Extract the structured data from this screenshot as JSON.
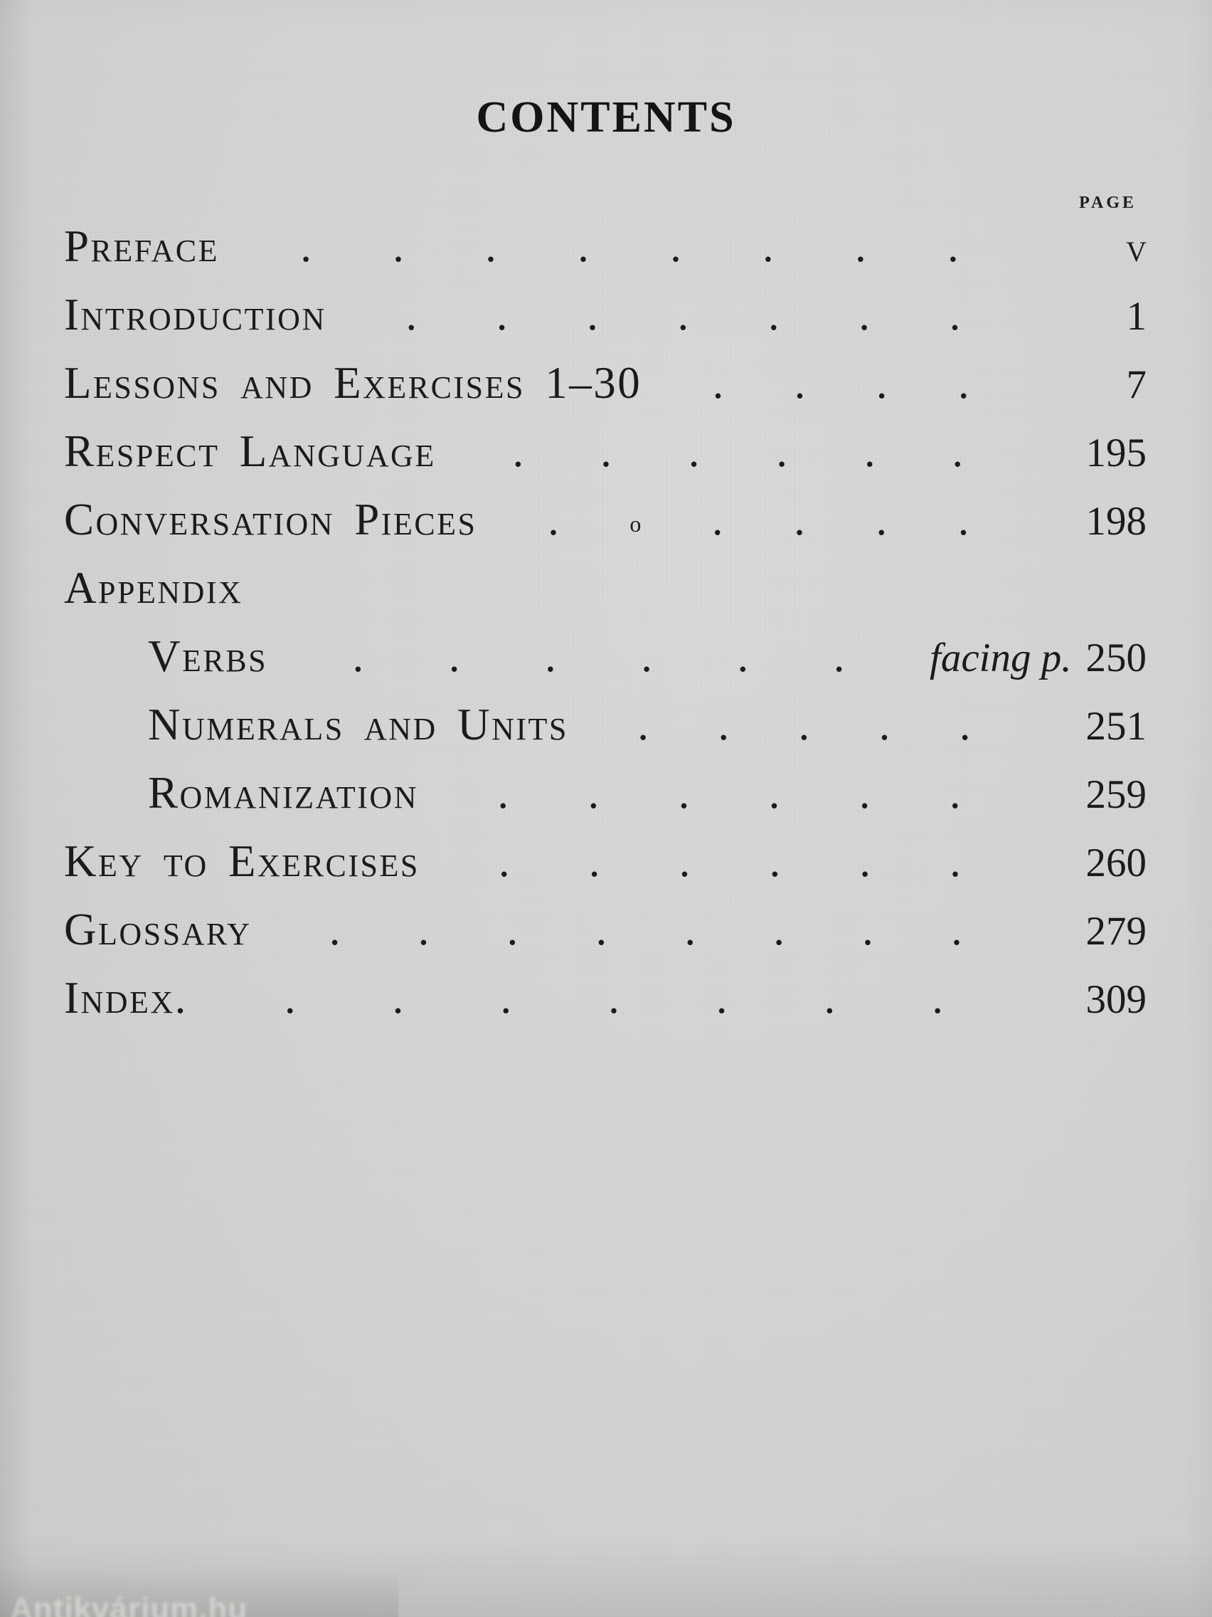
{
  "page": {
    "title": "CONTENTS",
    "column_header": "PAGE",
    "watermark": "Antikvárium.hu"
  },
  "colors": {
    "paper": "#d4d4d2",
    "ink": "#1b1b1b"
  },
  "toc": {
    "entries": [
      {
        "label": "Preface",
        "indent": 0,
        "dots": 8,
        "page": "v"
      },
      {
        "label": "Introduction",
        "indent": 0,
        "dots": 7,
        "page": "1"
      },
      {
        "label": "Lessons and Exercises 1–30",
        "indent": 0,
        "dots": 4,
        "page": "7"
      },
      {
        "label": "Respect Language",
        "indent": 0,
        "dots": 6,
        "page": "195"
      },
      {
        "label": "Conversation Pieces",
        "indent": 0,
        "dots": 6,
        "page": "198",
        "ring_dot": 1
      },
      {
        "label": "Appendix",
        "indent": 0,
        "dots": 0,
        "page": ""
      },
      {
        "label": "Verbs",
        "indent": 1,
        "dots": 6,
        "page": "250",
        "page_prefix": "facing p."
      },
      {
        "label": "Numerals and Units",
        "indent": 1,
        "dots": 5,
        "page": "251"
      },
      {
        "label": "Romanization",
        "indent": 1,
        "dots": 6,
        "page": "259"
      },
      {
        "label": "Key to Exercises",
        "indent": 0,
        "dots": 6,
        "page": "260"
      },
      {
        "label": "Glossary",
        "indent": 0,
        "dots": 8,
        "page": "279"
      },
      {
        "label": "Index.",
        "indent": 0,
        "dots": 7,
        "page": "309"
      }
    ]
  }
}
